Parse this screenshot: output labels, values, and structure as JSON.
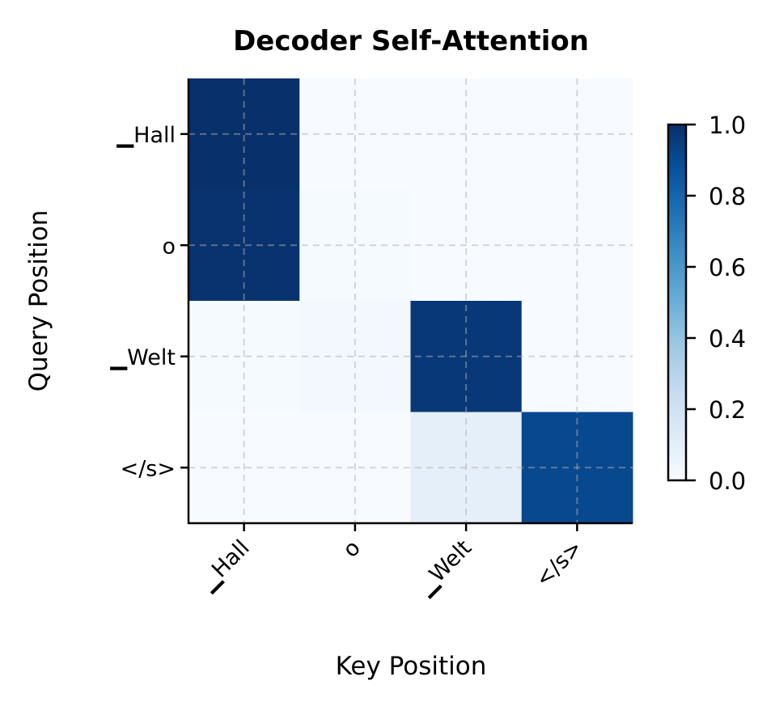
{
  "chart_data": {
    "type": "heatmap",
    "title": "Decoder Self-Attention",
    "xlabel": "Key Position",
    "ylabel": "Query Position",
    "x_categories": [
      "▁Hall",
      "o",
      "▁Welt",
      "</s>"
    ],
    "y_categories": [
      "▁Hall",
      "o",
      "▁Welt",
      "</s>"
    ],
    "values": [
      [
        1.0,
        0.0,
        0.0,
        0.0
      ],
      [
        0.99,
        0.01,
        0.0,
        0.0
      ],
      [
        0.01,
        0.02,
        0.97,
        0.0
      ],
      [
        0.0,
        0.0,
        0.09,
        0.91
      ]
    ],
    "colormap": "Blues",
    "colorbar": {
      "range": [
        0.0,
        1.0
      ],
      "ticks": [
        "0.0",
        "0.2",
        "0.4",
        "0.6",
        "0.8",
        "1.0"
      ]
    },
    "grid": true
  }
}
